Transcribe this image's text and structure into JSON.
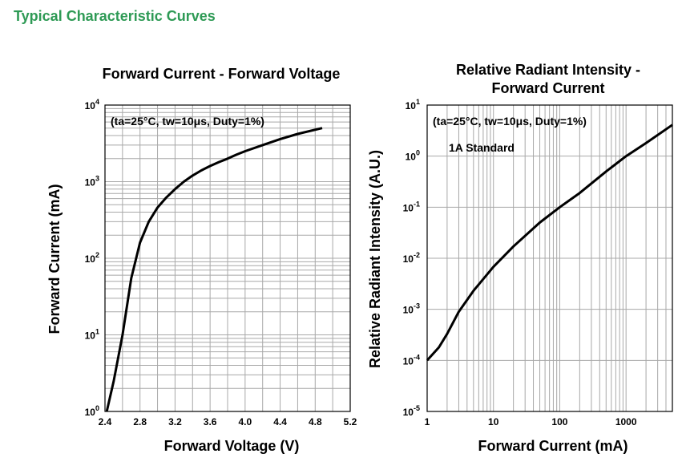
{
  "section_title": "Typical Characteristic Curves",
  "colors": {
    "title": "#2e9a55",
    "grid": "#a8a8a8",
    "curve": "#000000"
  },
  "chart_data": [
    {
      "type": "line",
      "title": "Forward Current - Forward Voltage",
      "xlabel": "Forward Voltage (V)",
      "ylabel": "Forward Current (mA)",
      "xlim": [
        2.4,
        5.2
      ],
      "ylim": [
        1,
        10000
      ],
      "yscale": "log",
      "grid": true,
      "annotation": "(ta=25°C, tw=10μs, Duty=1%)",
      "x_ticks": [
        "2.4",
        "2.8",
        "3.2",
        "3.6",
        "4.0",
        "4.4",
        "4.8",
        "5.2"
      ],
      "y_ticks": [
        {
          "base": "10",
          "exp": "0"
        },
        {
          "base": "10",
          "exp": "1"
        },
        {
          "base": "10",
          "exp": "2"
        },
        {
          "base": "10",
          "exp": "3"
        },
        {
          "base": "10",
          "exp": "4"
        }
      ],
      "series": [
        {
          "x": [
            2.42,
            2.5,
            2.6,
            2.7,
            2.8,
            2.9,
            3.0,
            3.1,
            3.2,
            3.3,
            3.4,
            3.5,
            3.6,
            3.7,
            3.8,
            3.9,
            4.0,
            4.2,
            4.4,
            4.6,
            4.88
          ],
          "y": [
            1,
            2.5,
            10,
            55,
            160,
            300,
            460,
            620,
            800,
            1000,
            1200,
            1400,
            1600,
            1800,
            2000,
            2250,
            2500,
            3000,
            3600,
            4200,
            5000
          ]
        }
      ]
    },
    {
      "type": "line",
      "title": [
        "Relative Radiant Intensity -",
        "Forward Current"
      ],
      "xlabel": "Forward Current (mA)",
      "ylabel": "Relative Radiant Intensity (A.U.)",
      "xlim": [
        1,
        5000
      ],
      "xscale": "log",
      "ylim": [
        1e-05,
        10
      ],
      "yscale": "log",
      "grid": true,
      "annotation": "(ta=25°C, tw=10μs, Duty=1%)",
      "annotation2": "1A Standard",
      "x_ticks": [
        "1",
        "10",
        "100",
        "1000"
      ],
      "y_ticks": [
        {
          "base": "10",
          "exp": "-5"
        },
        {
          "base": "10",
          "exp": "-4"
        },
        {
          "base": "10",
          "exp": "-3"
        },
        {
          "base": "10",
          "exp": "-2"
        },
        {
          "base": "10",
          "exp": "-1"
        },
        {
          "base": "10",
          "exp": "0"
        },
        {
          "base": "10",
          "exp": "1"
        }
      ],
      "series": [
        {
          "x": [
            1,
            1.5,
            2,
            3,
            5,
            10,
            20,
            50,
            100,
            200,
            500,
            1000,
            2000,
            5000
          ],
          "y": [
            0.0001,
            0.00018,
            0.00033,
            0.0009,
            0.0023,
            0.0068,
            0.017,
            0.05,
            0.1,
            0.19,
            0.5,
            1.0,
            1.8,
            4.1
          ]
        }
      ]
    }
  ]
}
